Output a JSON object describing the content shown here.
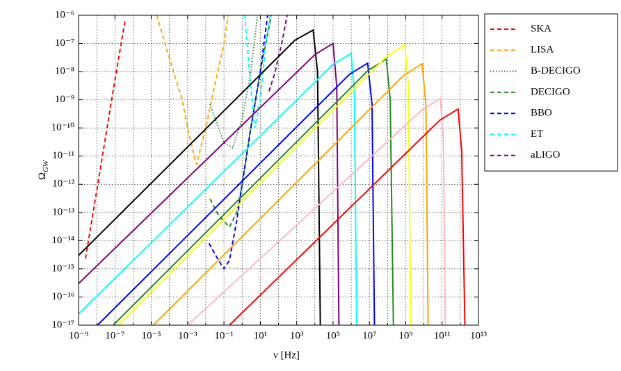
{
  "chart_data": {
    "type": "line",
    "xlabel": "ν [Hz]",
    "ylabel": {
      "symbol": "Ω",
      "subscript": "GW"
    },
    "log_x": true,
    "log_y": true,
    "grid": true,
    "legend": "outside right",
    "xlim": [
      1e-09,
      10000000000000.0
    ],
    "ylim": [
      1e-17,
      1e-06
    ],
    "xticks": [
      {
        "value": 1e-09,
        "label": "10⁻⁹"
      },
      {
        "value": 1e-07,
        "label": "10⁻⁷"
      },
      {
        "value": 1e-05,
        "label": "10⁻⁵"
      },
      {
        "value": 0.001,
        "label": "10⁻³"
      },
      {
        "value": 0.1,
        "label": "10⁻¹"
      },
      {
        "value": 10,
        "label": "10¹"
      },
      {
        "value": 1000,
        "label": "10³"
      },
      {
        "value": 100000.0,
        "label": "10⁵"
      },
      {
        "value": 10000000.0,
        "label": "10⁷"
      },
      {
        "value": 1000000000.0,
        "label": "10⁹"
      },
      {
        "value": 100000000000.0,
        "label": "10¹¹"
      },
      {
        "value": 10000000000000.0,
        "label": "10¹³"
      }
    ],
    "xminor": [
      1e-08,
      1e-06,
      0.0001,
      0.01,
      1,
      100,
      10000.0,
      1000000.0,
      100000000.0,
      10000000000.0,
      1000000000000.0
    ],
    "yticks": [
      {
        "value": 1e-17,
        "label": "10⁻¹⁷"
      },
      {
        "value": 1e-16,
        "label": "10⁻¹⁶"
      },
      {
        "value": 1e-15,
        "label": "10⁻¹⁵"
      },
      {
        "value": 1e-14,
        "label": "10⁻¹⁴"
      },
      {
        "value": 1e-13,
        "label": "10⁻¹³"
      },
      {
        "value": 1e-12,
        "label": "10⁻¹²"
      },
      {
        "value": 1e-11,
        "label": "10⁻¹¹"
      },
      {
        "value": 1e-10,
        "label": "10⁻¹⁰"
      },
      {
        "value": 1e-09,
        "label": "10⁻⁹"
      },
      {
        "value": 1e-08,
        "label": "10⁻⁸"
      },
      {
        "value": 1e-07,
        "label": "10⁻⁷"
      },
      {
        "value": 1e-06,
        "label": "10⁻⁶"
      }
    ],
    "series": [
      {
        "name": "SKA",
        "color": "#ff0000",
        "dash": "dashed",
        "x": [
          2.4e-09,
          1e-08,
          1e-07,
          3.7e-07
        ],
        "values": [
          2.3e-15,
          6e-13,
          5e-09,
          7e-07
        ]
      },
      {
        "name": "LISA",
        "color": "#ffa500",
        "dash": "dashed",
        "x": [
          2e-05,
          0.0001,
          0.0005,
          0.001,
          0.003,
          0.01,
          0.03,
          0.1,
          0.17
        ],
        "values": [
          1e-06,
          3e-08,
          1e-09,
          1e-10,
          5e-12,
          1e-10,
          3e-09,
          1e-07,
          1e-06
        ]
      },
      {
        "name": "B-DECIGO",
        "color": "#228b22",
        "dash": "dotted",
        "x": [
          0.017,
          0.05,
          0.1,
          0.3,
          1,
          3,
          7
        ],
        "values": [
          7e-10,
          1e-10,
          3e-11,
          2e-11,
          2e-10,
          1e-08,
          1e-06
        ]
      },
      {
        "name": "DECIGO",
        "color": "#228b22",
        "dash": "dashed",
        "x": [
          0.017,
          0.05,
          0.2,
          0.5,
          1,
          3,
          10,
          40
        ],
        "values": [
          3e-13,
          8e-14,
          3e-14,
          1e-13,
          1e-12,
          1e-10,
          1e-08,
          1e-06
        ]
      },
      {
        "name": "BBO",
        "color": "#0000ff",
        "dash": "dashed",
        "x": [
          0.015,
          0.05,
          0.1,
          0.2,
          0.5,
          1,
          3,
          10,
          25
        ],
        "values": [
          8e-15,
          2e-15,
          1e-15,
          2e-15,
          5e-14,
          1e-12,
          1e-10,
          1e-08,
          1e-06
        ]
      },
      {
        "name": "ET",
        "color": "#00ffff",
        "dash": "dashed",
        "x": [
          1.4,
          2.5,
          5,
          10,
          20,
          35
        ],
        "values": [
          1e-06,
          1e-08,
          1e-10,
          1e-09,
          1e-07,
          1e-06
        ]
      },
      {
        "name": "aLIGO",
        "color": "#800080",
        "dash": "dashed",
        "x": [
          30,
          60,
          150,
          300
        ],
        "values": [
          2e-09,
          8e-09,
          1e-07,
          1e-06
        ]
      },
      {
        "color": "#000000",
        "x": [
          1e-09,
          800,
          8000,
          14000,
          20000
        ],
        "values": [
          3e-15,
          1.3e-07,
          3e-07,
          1e-08,
          1e-17
        ]
      },
      {
        "color": "#800080",
        "x": [
          1e-09,
          10000,
          100000,
          160000,
          210000
        ],
        "values": [
          3e-16,
          4e-08,
          1e-07,
          3e-09,
          1e-17
        ]
      },
      {
        "color": "#00ffff",
        "x": [
          1e-09,
          100000,
          1000000,
          1500000,
          2000000
        ],
        "values": [
          2.5e-17,
          1.8e-08,
          4.4e-08,
          1.5e-09,
          1e-17
        ]
      },
      {
        "color": "#0000ff",
        "x": [
          1.1e-08,
          800000,
          8000000,
          14000000,
          19000000
        ],
        "values": [
          1e-17,
          8e-09,
          2e-08,
          7e-10,
          1e-17
        ]
      },
      {
        "color": "#228b22",
        "x": [
          8e-08,
          8500000,
          85000000,
          140000000,
          210000000
        ],
        "values": [
          1e-17,
          1.1e-08,
          2.8e-08,
          1e-09,
          1e-17
        ]
      },
      {
        "color": "#ffff00",
        "x": [
          1.6e-07,
          90000000,
          900000000,
          1400000000,
          1900000000
        ],
        "values": [
          1e-17,
          3.5e-08,
          8.7e-08,
          3e-09,
          1e-17
        ]
      },
      {
        "color": "#ffa500",
        "x": [
          1.3e-05,
          800000000,
          8000000000,
          13000000000,
          17000000000
        ],
        "values": [
          1e-17,
          7.5e-09,
          1.9e-08,
          6e-10,
          1e-17
        ]
      },
      {
        "color": "#ffb6c1",
        "x": [
          0.001,
          8000000000,
          80000000000,
          120000000000,
          150000000000
        ],
        "values": [
          1e-17,
          4.4e-10,
          1.1e-09,
          3.5e-11,
          1e-17
        ]
      },
      {
        "color": "#ff0000",
        "x": [
          0.2,
          76000000000,
          760000000000,
          1200000000000,
          1800000000000
        ],
        "values": [
          1e-17,
          1.9e-10,
          4.7e-10,
          1.5e-11,
          1e-17
        ]
      }
    ]
  }
}
